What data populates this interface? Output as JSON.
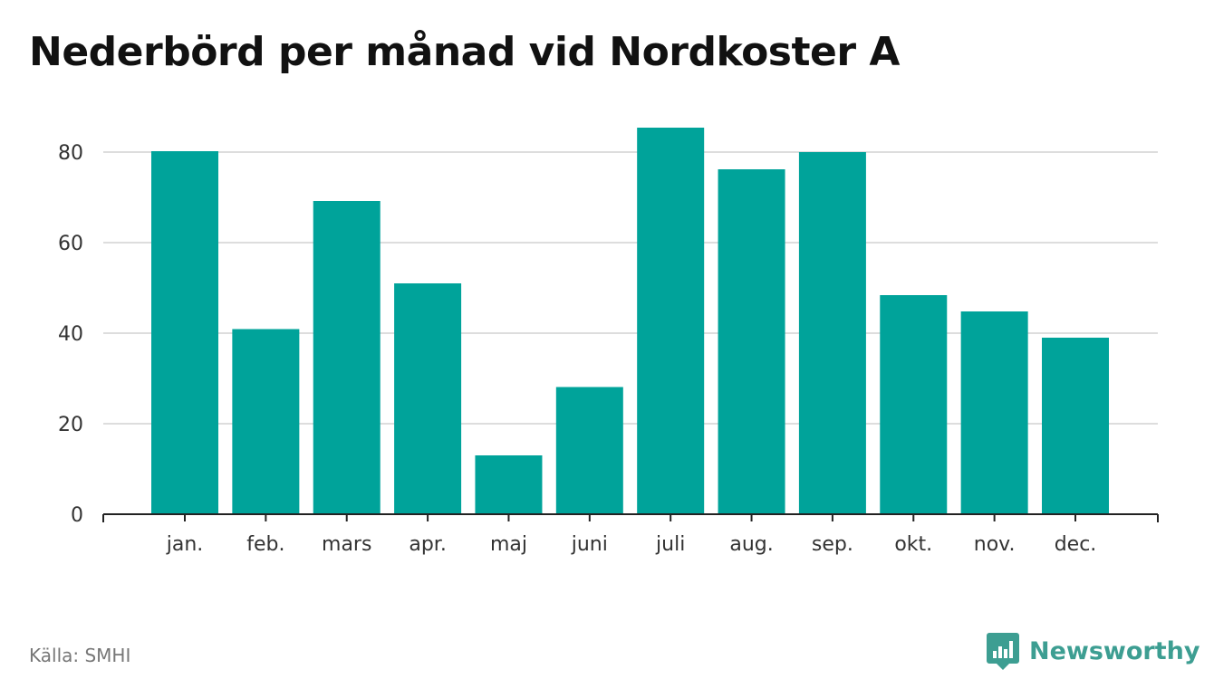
{
  "title": "Nederbörd per månad vid Nordkoster A",
  "source": "Källa: SMHI",
  "brand": {
    "name": "Newsworthy",
    "icon": "newsworthy-logo-icon",
    "color": "#3d9e92"
  },
  "colors": {
    "bar": "#00a39a",
    "grid": "#dddddd",
    "axis": "#222222"
  },
  "chart_data": {
    "type": "bar",
    "title": "Nederbörd per månad vid Nordkoster A",
    "xlabel": "",
    "ylabel": "",
    "categories": [
      "jan.",
      "feb.",
      "mars",
      "apr.",
      "maj",
      "juni",
      "juli",
      "aug.",
      "sep.",
      "okt.",
      "nov.",
      "dec."
    ],
    "values": [
      80.2,
      40.9,
      69.2,
      51.0,
      13.0,
      28.1,
      85.4,
      76.2,
      80.0,
      48.4,
      44.8,
      39.0
    ],
    "ylim": [
      0,
      90
    ],
    "yticks": [
      0,
      20,
      40,
      60,
      80
    ],
    "grid": true,
    "legend": "none"
  }
}
